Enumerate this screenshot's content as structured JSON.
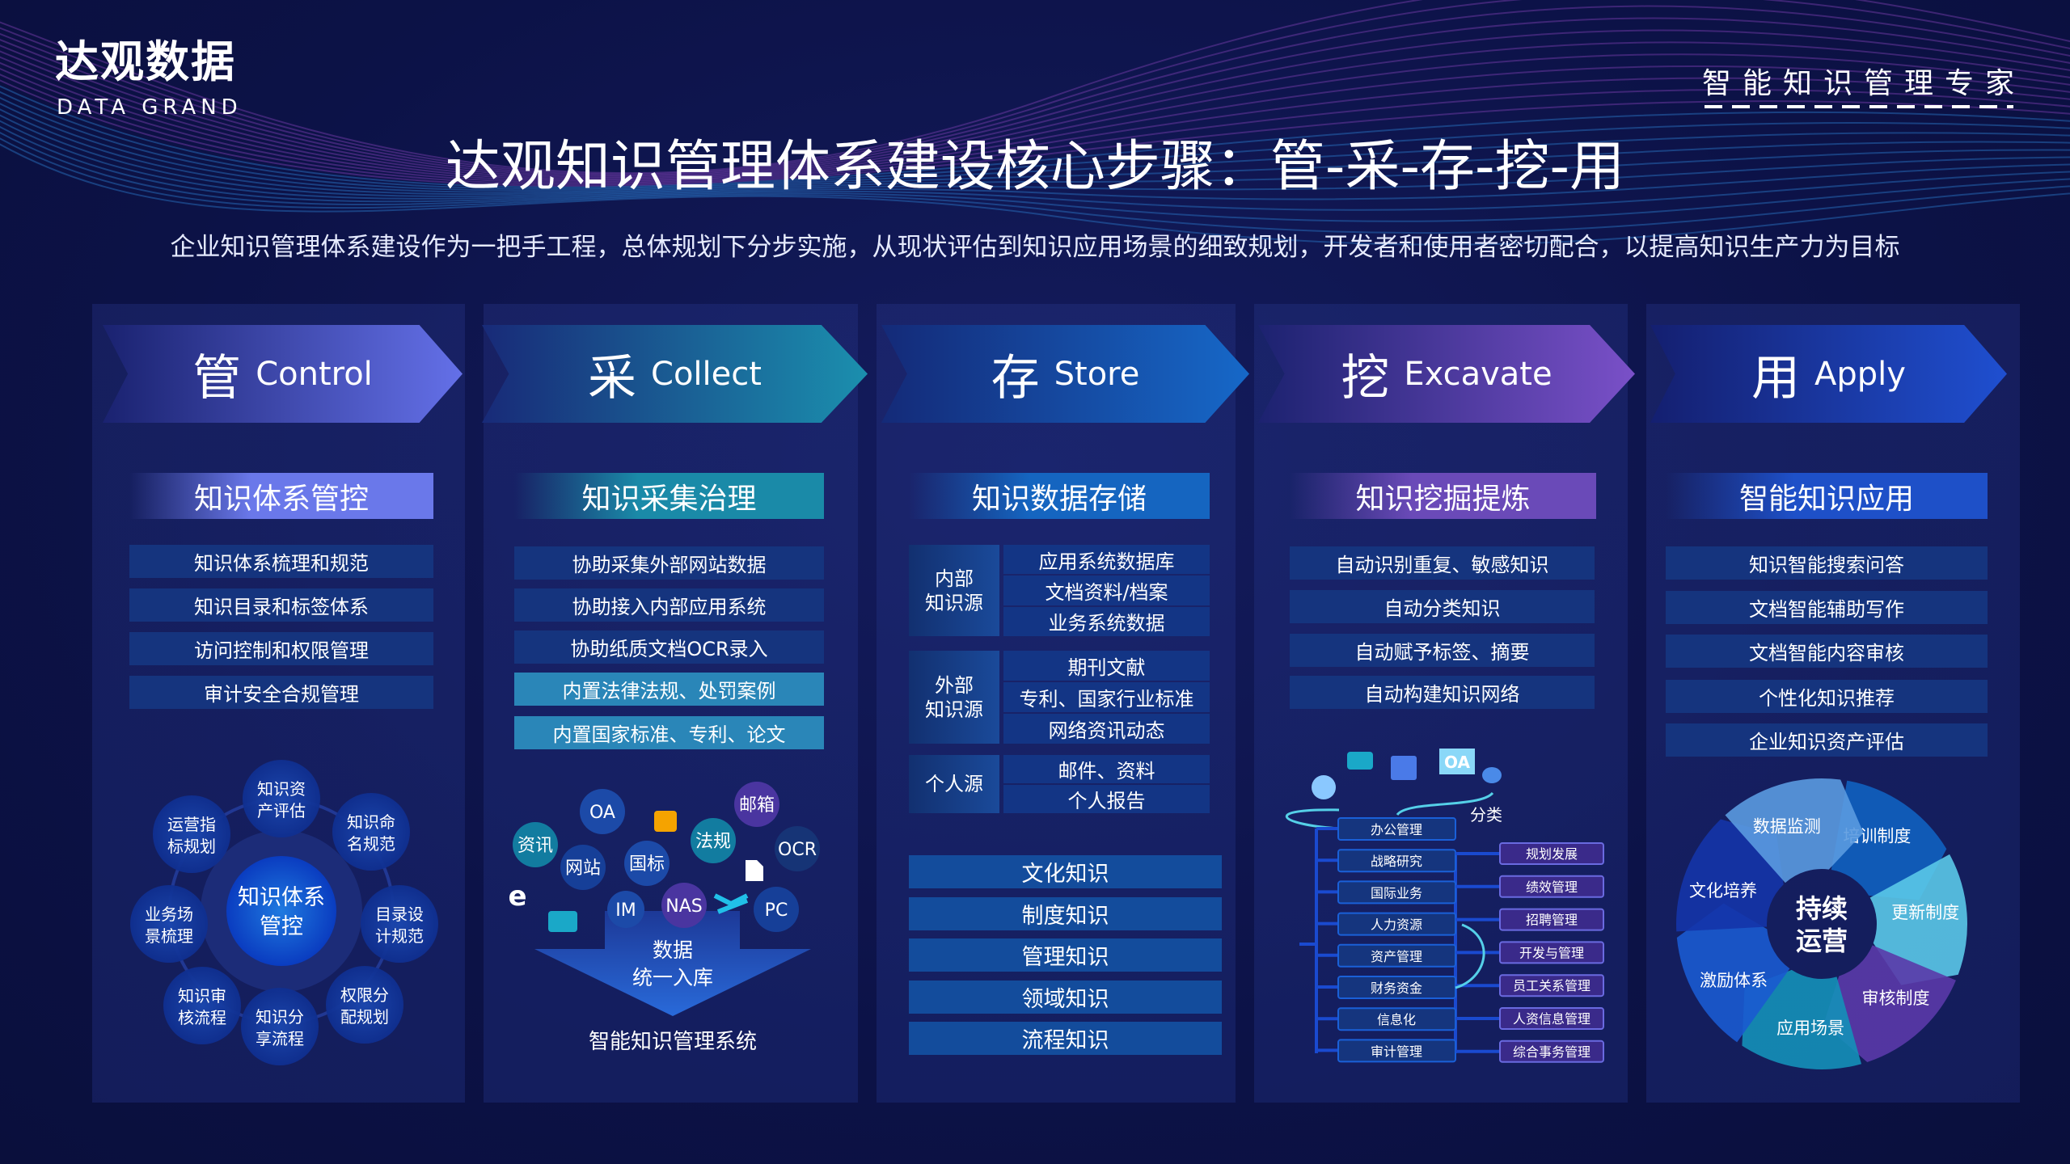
{
  "logo": {
    "cn": "达观数据",
    "en": "DATA GRAND"
  },
  "slogan": "智能知识管理专家",
  "title": "达观知识管理体系建设核心步骤：管-采-存-挖-用",
  "subtitle": "企业知识管理体系建设作为一把手工程，总体规划下分步实施，从现状评估到知识应用场景的细致规划，开发者和使用者密切配合，以提高知识生产力为目标",
  "colors": {
    "background": "#0c1247",
    "item": "#15347e",
    "control": "#5f6de0",
    "collect": "#1a8aa8",
    "store": "#1565c0",
    "excavate": "#7b4fc0",
    "apply": "#1e4fc8"
  },
  "columns": [
    {
      "cn": "管",
      "en": "Control",
      "sub": "知识体系管控",
      "items": [
        "知识体系梳理和规范",
        "知识目录和标签体系",
        "访问控制和权限管理",
        "审计安全合规管理"
      ]
    },
    {
      "cn": "采",
      "en": "Collect",
      "sub": "知识采集治理",
      "items": [
        "协助采集外部网站数据",
        "协助接入内部应用系统",
        "协助纸质文档OCR录入",
        "内置法律法规、处罚案例",
        "内置国家标准、专利、论文"
      ]
    },
    {
      "cn": "存",
      "en": "Store",
      "sub": "知识数据存储"
    },
    {
      "cn": "挖",
      "en": "Excavate",
      "sub": "知识挖掘提炼",
      "items": [
        "自动识别重复、敏感知识",
        "自动分类知识",
        "自动赋予标签、摘要",
        "自动构建知识网络"
      ]
    },
    {
      "cn": "用",
      "en": "Apply",
      "sub": "智能知识应用",
      "items": [
        "知识智能搜索问答",
        "文档智能辅助写作",
        "文档智能内容审核",
        "个性化知识推荐",
        "企业知识资产评估"
      ]
    }
  ],
  "control_diagram": {
    "center": [
      "知识体系",
      "管控"
    ],
    "nodes": [
      [
        "知识资",
        "产评估"
      ],
      [
        "知识命",
        "名规范"
      ],
      [
        "目录设",
        "计规范"
      ],
      [
        "权限分",
        "配规划"
      ],
      [
        "知识分",
        "享流程"
      ],
      [
        "知识审",
        "核流程"
      ],
      [
        "业务场",
        "景梳理"
      ],
      [
        "运营指",
        "标规划"
      ]
    ]
  },
  "collect_diagram": {
    "sources": [
      "OA",
      "资讯",
      "网站",
      "国标",
      "法规",
      "邮箱",
      "OCR",
      "IM",
      "NAS",
      "PC"
    ],
    "icons": [
      "mail-icon",
      "pdf-icon",
      "ie-browser-icon",
      "chat-icon",
      "app-icon"
    ],
    "arrow": [
      "数据",
      "统一入库"
    ],
    "system": "智能知识管理系统"
  },
  "store_groups": [
    {
      "label": [
        "内部",
        "知识源"
      ],
      "items": [
        "应用系统数据库",
        "文档资料/档案",
        "业务系统数据"
      ]
    },
    {
      "label": [
        "外部",
        "知识源"
      ],
      "items": [
        "期刊文献",
        "专利、国家行业标准",
        "网络资讯动态"
      ]
    },
    {
      "label": [
        "个人源"
      ],
      "items": [
        "邮件、资料",
        "个人报告"
      ]
    }
  ],
  "store_types": [
    "文化知识",
    "制度知识",
    "管理知识",
    "领域知识",
    "流程知识"
  ],
  "excavate_diagram": {
    "classify": "分类",
    "left": [
      "办公管理",
      "战略研究",
      "国际业务",
      "人力资源",
      "资产管理",
      "财务资金",
      "信息化",
      "审计管理"
    ],
    "right": [
      "规划发展",
      "绩效管理",
      "招聘管理",
      "开发与管理",
      "员工关系管理",
      "人资信息管理",
      "综合事务管理"
    ],
    "icons": [
      "chat-icon",
      "mail-icon",
      "oa-monitor-icon",
      "message-icon",
      "cloud-icon"
    ],
    "oa": "OA"
  },
  "apply_cycle": {
    "center": [
      "持续",
      "运营"
    ],
    "segments": [
      "培训制度",
      "更新制度",
      "审核制度",
      "应用场景",
      "激励体系",
      "文化培养",
      "数据监测"
    ]
  }
}
